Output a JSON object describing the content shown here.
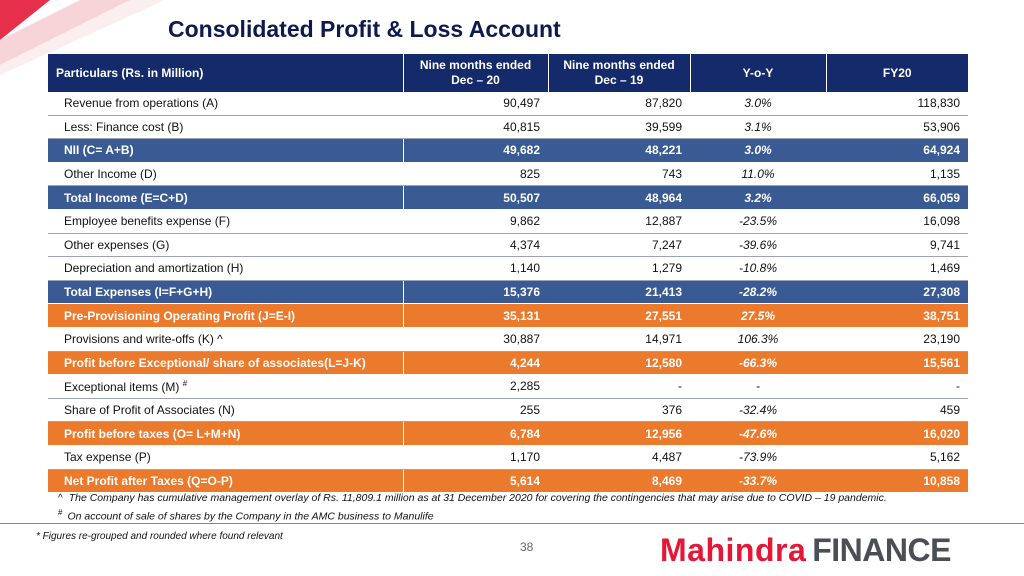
{
  "title": "Consolidated Profit & Loss Account",
  "colors": {
    "header_bg": "#142a6b",
    "blue_row": "#3a5a94",
    "orange_row": "#ec7a2c",
    "brand_red": "#e31837",
    "brand_grey": "#4a4f55"
  },
  "table": {
    "headers": {
      "particulars": "Particulars (Rs. in Million)",
      "nine_months_dec20_line1": "Nine months ended",
      "nine_months_dec20_line2": "Dec – 20",
      "nine_months_dec19_line1": "Nine months ended",
      "nine_months_dec19_line2": "Dec – 19",
      "yoy": "Y-o-Y",
      "fy20": "FY20"
    },
    "rows": [
      {
        "label": "Revenue from operations (A)",
        "dec20": "90,497",
        "dec19": "87,820",
        "yoy": "3.0%",
        "fy20": "118,830",
        "style": "plain"
      },
      {
        "label": "Less: Finance cost (B)",
        "dec20": "40,815",
        "dec19": "39,599",
        "yoy": "3.1%",
        "fy20": "53,906",
        "style": "plain"
      },
      {
        "label": "NII (C= A+B)",
        "dec20": "49,682",
        "dec19": "48,221",
        "yoy": "3.0%",
        "fy20": "64,924",
        "style": "blue"
      },
      {
        "label": "Other Income (D)",
        "dec20": "825",
        "dec19": "743",
        "yoy": "11.0%",
        "fy20": "1,135",
        "style": "plain"
      },
      {
        "label": "Total Income (E=C+D)",
        "dec20": "50,507",
        "dec19": "48,964",
        "yoy": "3.2%",
        "fy20": "66,059",
        "style": "blue"
      },
      {
        "label": "Employee benefits expense (F)",
        "dec20": "9,862",
        "dec19": "12,887",
        "yoy": "-23.5%",
        "fy20": "16,098",
        "style": "plain"
      },
      {
        "label": "Other expenses (G)",
        "dec20": "4,374",
        "dec19": "7,247",
        "yoy": "-39.6%",
        "fy20": "9,741",
        "style": "plain"
      },
      {
        "label": "Depreciation and amortization (H)",
        "dec20": "1,140",
        "dec19": "1,279",
        "yoy": "-10.8%",
        "fy20": "1,469",
        "style": "plain"
      },
      {
        "label": "Total Expenses (I=F+G+H)",
        "dec20": "15,376",
        "dec19": "21,413",
        "yoy": "-28.2%",
        "fy20": "27,308",
        "style": "blue"
      },
      {
        "label": "Pre-Provisioning Operating Profit (J=E-I)",
        "dec20": "35,131",
        "dec19": "27,551",
        "yoy": "27.5%",
        "fy20": "38,751",
        "style": "orange"
      },
      {
        "label": "Provisions and write-offs (K) ^",
        "dec20": "30,887",
        "dec19": "14,971",
        "yoy": "106.3%",
        "fy20": "23,190",
        "style": "plain"
      },
      {
        "label": "Profit before Exceptional/ share of associates(L=J-K)",
        "dec20": "4,244",
        "dec19": "12,580",
        "yoy": "-66.3%",
        "fy20": "15,561",
        "style": "orange"
      },
      {
        "label": "Exceptional items (M)",
        "sup": "#",
        "dec20": "2,285",
        "dec19": "-",
        "yoy": "-",
        "fy20": "-",
        "style": "plain"
      },
      {
        "label": "Share of Profit of Associates (N)",
        "dec20": "255",
        "dec19": "376",
        "yoy": "-32.4%",
        "fy20": "459",
        "style": "plain"
      },
      {
        "label": "Profit before taxes (O= L+M+N)",
        "dec20": "6,784",
        "dec19": "12,956",
        "yoy": "-47.6%",
        "fy20": "16,020",
        "style": "orange"
      },
      {
        "label": "Tax expense (P)",
        "dec20": "1,170",
        "dec19": "4,487",
        "yoy": "-73.9%",
        "fy20": "5,162",
        "style": "plain"
      },
      {
        "label": "Net Profit after Taxes (Q=O-P)",
        "dec20": "5,614",
        "dec19": "8,469",
        "yoy": "-33.7%",
        "fy20": "10,858",
        "style": "orange"
      }
    ]
  },
  "footnotes": {
    "caret_marker": "^",
    "caret_text": "The Company has cumulative management overlay of Rs. 11,809.1 million as at 31 December 2020 for covering the contingencies that may arise due to COVID – 19 pandemic.",
    "hash_marker": "#",
    "hash_text": "On account of sale of shares by the Company in the AMC business to Manulife"
  },
  "figures_note": "* Figures re-grouped and rounded where found relevant",
  "page_number": "38",
  "logo": {
    "part1": "Mahindra",
    "part2": "FINANCE"
  }
}
